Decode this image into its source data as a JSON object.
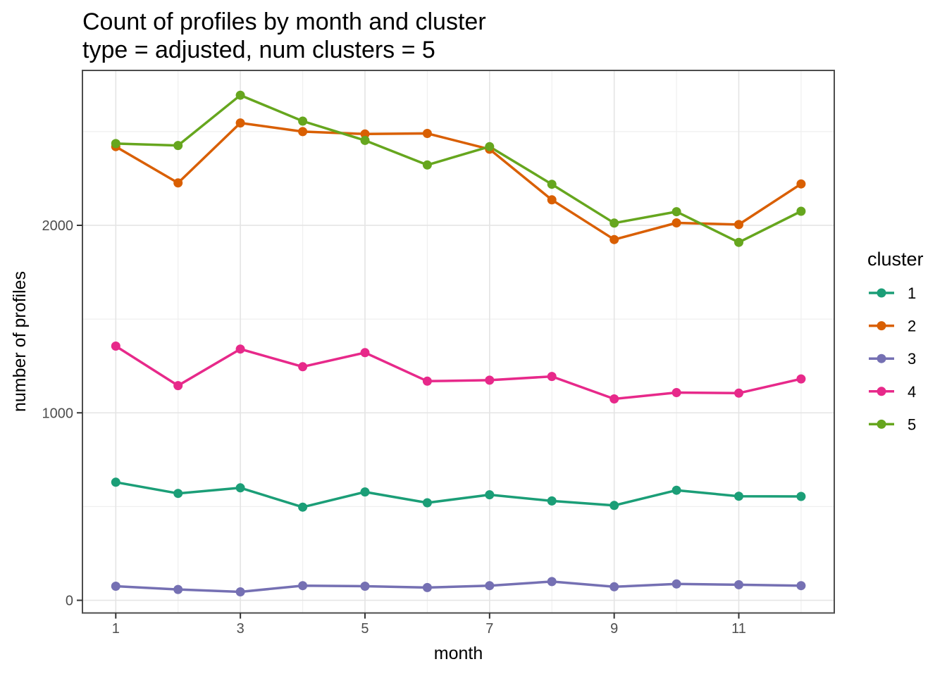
{
  "title": "Count of profiles by month and cluster",
  "subtitle": "type = adjusted, num clusters = 5",
  "colors": {
    "panel_border": "#4d4d4d",
    "grid_major": "#e4e4e4",
    "grid_minor": "#efefef",
    "tick": "#333333",
    "tick_label": "#4d4d4d"
  },
  "chart_data": {
    "type": "line",
    "title": "Count of profiles by month and cluster",
    "subtitle": "type = adjusted, num clusters = 5",
    "xlabel": "month",
    "ylabel": "number of profiles",
    "x": [
      1,
      2,
      3,
      4,
      5,
      6,
      7,
      8,
      9,
      10,
      11,
      12
    ],
    "x_ticks": [
      1,
      3,
      5,
      7,
      9,
      11
    ],
    "y_ticks": [
      0,
      1000,
      2000
    ],
    "y_minor_gridlines": [
      500,
      1500,
      2500
    ],
    "xlim": [
      0.45,
      12.55
    ],
    "ylim": [
      -65,
      2830
    ],
    "grid": "major and minor, light grey on white, dark panel border",
    "legend": {
      "title": "cluster",
      "position": "right"
    },
    "series": [
      {
        "name": "1",
        "color": "#1B9E77",
        "values": [
          630,
          570,
          600,
          497,
          578,
          520,
          563,
          530,
          506,
          587,
          555,
          554
        ]
      },
      {
        "name": "2",
        "color": "#D95F02",
        "values": [
          2420,
          2226,
          2546,
          2500,
          2487,
          2490,
          2406,
          2136,
          1924,
          2013,
          2004,
          2221
        ]
      },
      {
        "name": "3",
        "color": "#7570B3",
        "values": [
          75,
          58,
          45,
          78,
          75,
          68,
          78,
          100,
          72,
          87,
          83,
          78
        ]
      },
      {
        "name": "4",
        "color": "#E7298A",
        "values": [
          1356,
          1145,
          1340,
          1246,
          1321,
          1169,
          1174,
          1194,
          1074,
          1108,
          1105,
          1181
        ]
      },
      {
        "name": "5",
        "color": "#66A61E",
        "values": [
          2436,
          2426,
          2694,
          2556,
          2453,
          2322,
          2420,
          2219,
          2012,
          2073,
          1909,
          2075
        ]
      }
    ]
  }
}
